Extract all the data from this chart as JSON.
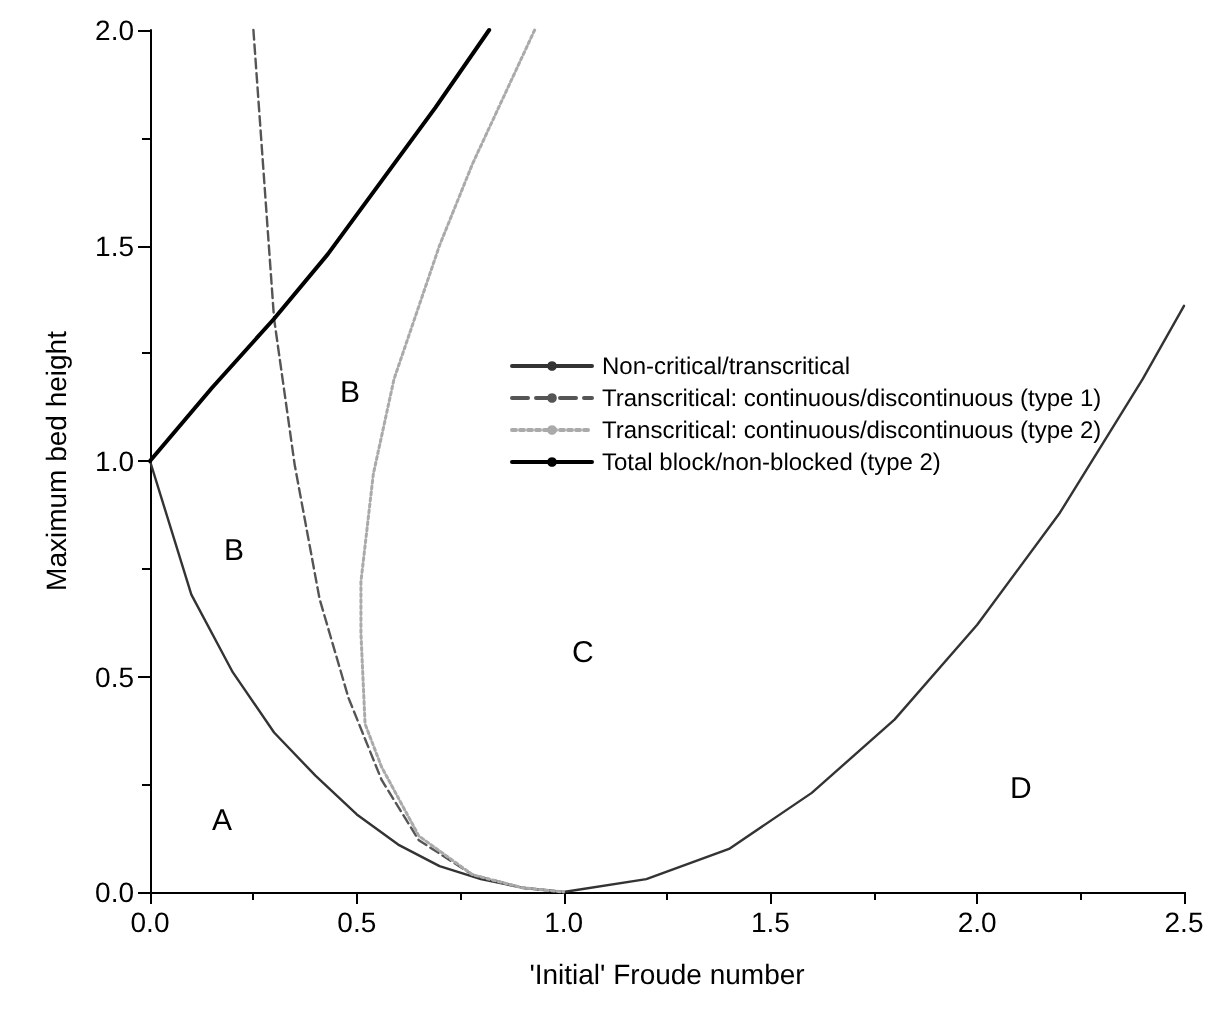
{
  "chart_data": {
    "type": "line",
    "xlabel": "'Initial' Froude number",
    "ylabel": "Maximum bed height",
    "xlim": [
      0,
      2.5
    ],
    "ylim": [
      0,
      2
    ],
    "xticks": [
      {
        "value": 0,
        "label": "0.0"
      },
      {
        "value": 0.5,
        "label": "0.5"
      },
      {
        "value": 1,
        "label": "1.0"
      },
      {
        "value": 1.5,
        "label": "1.5"
      },
      {
        "value": 2,
        "label": "2.0"
      },
      {
        "value": 2.5,
        "label": "2.5"
      }
    ],
    "yticks": [
      {
        "value": 0,
        "label": "0.0"
      },
      {
        "value": 0.5,
        "label": "0.5"
      },
      {
        "value": 1,
        "label": "1.0"
      },
      {
        "value": 1.5,
        "label": "1.5"
      },
      {
        "value": 2,
        "label": "2.0"
      }
    ],
    "grid": false,
    "legend": "right",
    "marker": "none",
    "series": [
      {
        "name": "Non-critical/transcritical",
        "color": "#333333",
        "line_style": "solid",
        "x": [
          0,
          0.1,
          0.2,
          0.3,
          0.4,
          0.5,
          0.6,
          0.7,
          0.8,
          0.9,
          1.0,
          1.2,
          1.4,
          1.6,
          1.8,
          2.0,
          2.2,
          2.4,
          2.5
        ],
        "values": [
          1,
          0.69,
          0.51,
          0.37,
          0.27,
          0.18,
          0.11,
          0.06,
          0.03,
          0.01,
          0,
          0.03,
          0.1,
          0.23,
          0.4,
          0.62,
          0.88,
          1.19,
          1.36
        ]
      },
      {
        "name": "Transcritical: continuous/discontinuous (type 1)",
        "color": "#555555",
        "line_style": "dashed",
        "x": [
          0.25,
          0.3,
          0.35,
          0.41,
          0.48,
          0.56,
          0.65,
          0.78,
          0.9,
          1.0
        ],
        "values": [
          2.0,
          1.33,
          0.99,
          0.68,
          0.45,
          0.26,
          0.12,
          0.04,
          0.01,
          0
        ]
      },
      {
        "name": "Transcritical: continuous/discontinuous (type 2)",
        "color": "#aaaaaa",
        "line_style": "dotted",
        "x": [
          0.93,
          0.78,
          0.7,
          0.59,
          0.54,
          0.51,
          0.51,
          0.52,
          0.56,
          0.65,
          0.78,
          0.9,
          1.0
        ],
        "values": [
          2.0,
          1.69,
          1.5,
          1.19,
          0.97,
          0.72,
          0.6,
          0.39,
          0.29,
          0.13,
          0.04,
          0.01,
          0
        ]
      },
      {
        "name": "Total block/non-blocked (type 2)",
        "color": "#000000",
        "line_style": "solid",
        "x": [
          0,
          0.15,
          0.3,
          0.43,
          0.56,
          0.69,
          0.82
        ],
        "values": [
          1,
          1.17,
          1.33,
          1.48,
          1.65,
          1.82,
          2.0
        ]
      }
    ],
    "annotations": [
      "A",
      "B",
      "B",
      "C",
      "D"
    ]
  }
}
